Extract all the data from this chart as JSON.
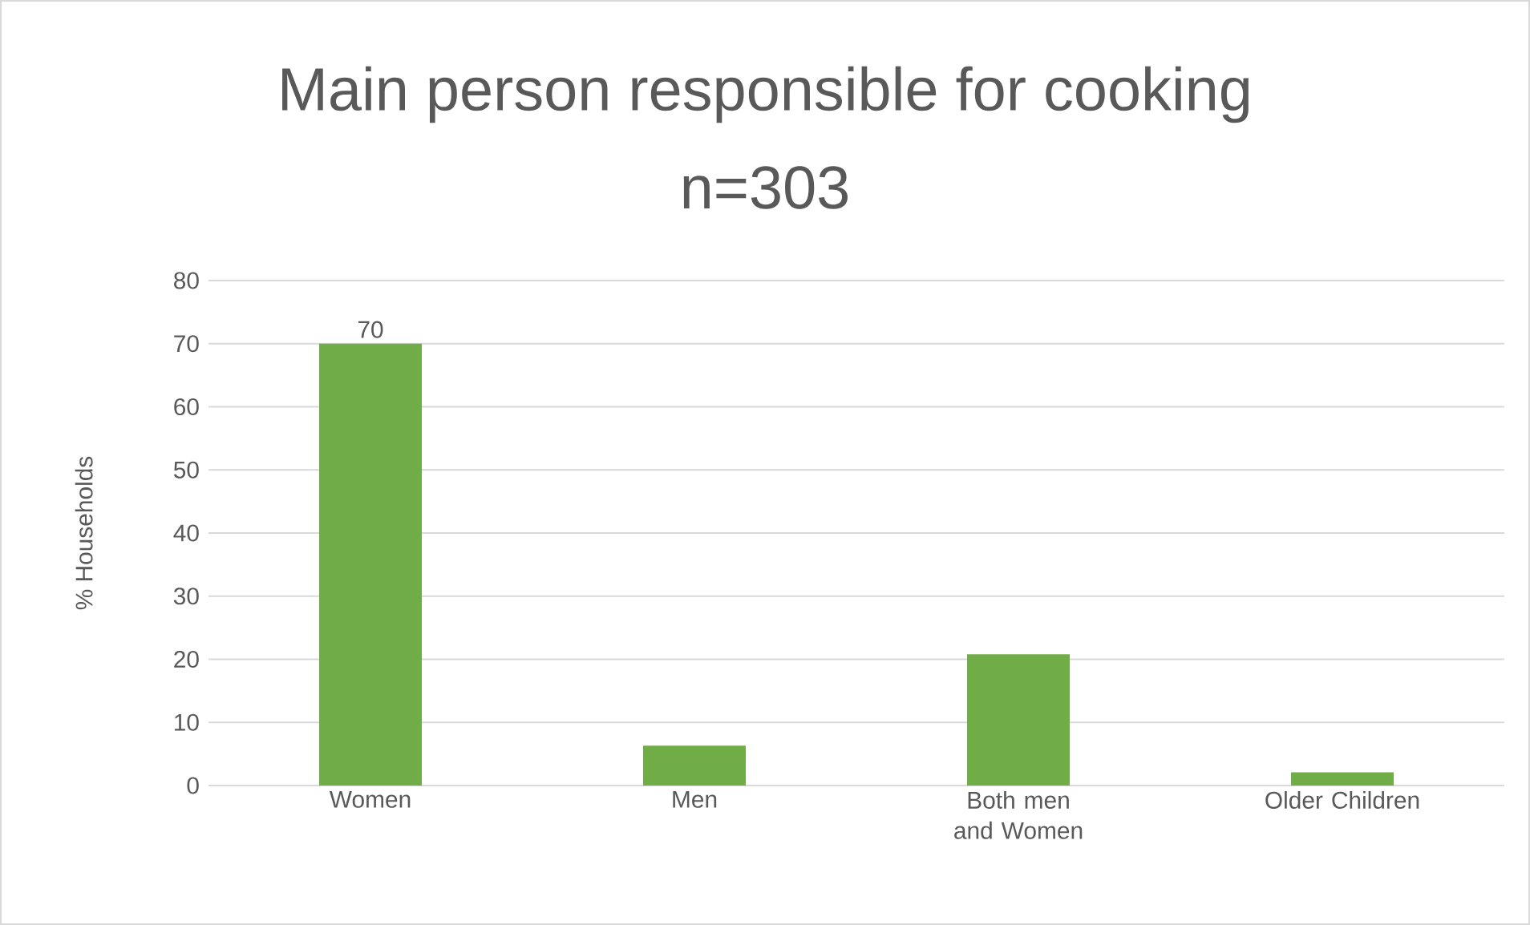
{
  "chart_data": {
    "type": "bar",
    "title": "Main person responsible for cooking",
    "subtitle": "n=303",
    "ylabel": "% Households",
    "categories": [
      "Women",
      "Men",
      "Both men and Women",
      "Older Children"
    ],
    "values": [
      70,
      6.3,
      20.8,
      2.1
    ],
    "value_labels": [
      "70",
      null,
      null,
      null
    ],
    "color": "#70ad47",
    "ylim": [
      0,
      80
    ],
    "yticks": [
      0,
      10,
      20,
      30,
      40,
      50,
      60,
      70,
      80
    ],
    "grid": "y"
  }
}
